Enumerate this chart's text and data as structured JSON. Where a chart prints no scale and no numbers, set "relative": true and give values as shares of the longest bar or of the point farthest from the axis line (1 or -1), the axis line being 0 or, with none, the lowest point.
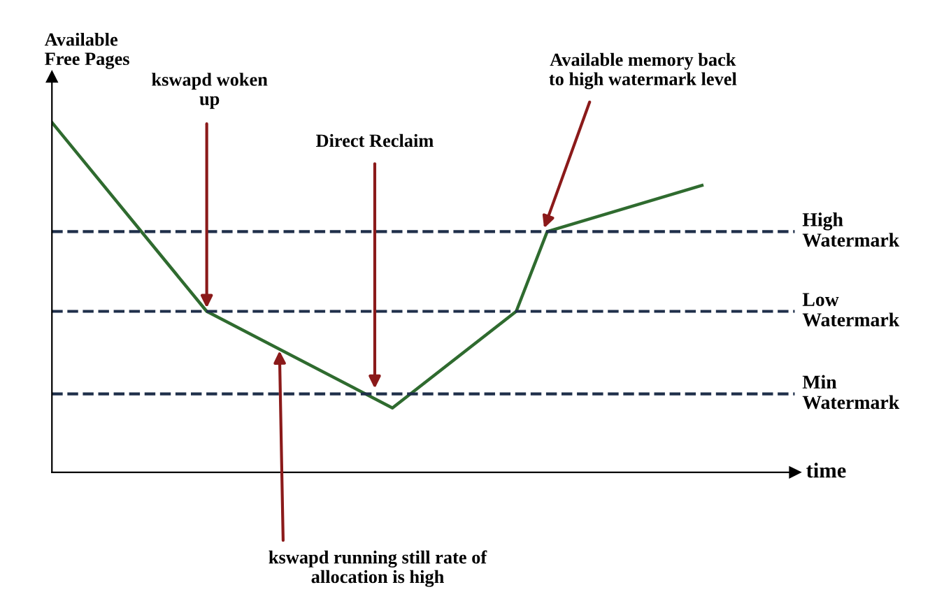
{
  "chart_data": {
    "type": "line",
    "relative": true,
    "ylabel": "Available\nFree Pages",
    "xlabel": "time",
    "categories": [
      null,
      null,
      null,
      null,
      null,
      null,
      null,
      null,
      null,
      null,
      null,
      null,
      null,
      null,
      null,
      null,
      null,
      null,
      null,
      null,
      null,
      null,
      null,
      null,
      null
    ],
    "tick_labels": false,
    "legend": false,
    "marker": "none",
    "line_style": "solid",
    "series": [
      {
        "color": "#2f6b2f",
        "values": [
          1,
          null,
          null,
          null,
          null,
          0.46,
          null,
          null,
          null,
          null,
          null,
          0.184,
          null,
          null,
          null,
          0.46,
          0.688,
          null,
          null,
          null,
          null,
          0.82,
          null,
          null,
          null
        ]
      }
    ],
    "ref_lines": [
      {
        "axis": "y",
        "value": 0.688,
        "label": "High\nWatermark",
        "color": "#1f2f4a",
        "line_style": "dashed"
      },
      {
        "axis": "y",
        "value": 0.46,
        "label": "Low\nWatermark",
        "color": "#1f2f4a",
        "line_style": "dashed"
      },
      {
        "axis": "y",
        "value": 0.224,
        "label": "Min\nWatermark",
        "color": "#1f2f4a",
        "line_style": "dashed"
      }
    ],
    "annotations": [
      "kswapd woken\nup",
      "Direct Reclaim",
      "Available memory back\nto high watermark level",
      "kswapd running still rate of\nallocation is high"
    ]
  }
}
